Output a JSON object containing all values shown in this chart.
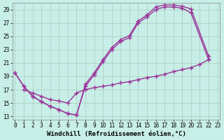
{
  "xlabel": "Windchill (Refroidissement éolien,°C)",
  "bg_color": "#c8eee8",
  "line_color": "#993399",
  "xlim": [
    -0.3,
    23.3
  ],
  "ylim": [
    12.5,
    30.0
  ],
  "xticks": [
    0,
    1,
    2,
    3,
    4,
    5,
    6,
    7,
    8,
    9,
    10,
    11,
    12,
    13,
    14,
    15,
    16,
    17,
    18,
    19,
    20,
    21,
    22,
    23
  ],
  "yticks": [
    13,
    15,
    17,
    19,
    21,
    23,
    25,
    27,
    29
  ],
  "line1_x": [
    0,
    1,
    2,
    3,
    4,
    5,
    6,
    7,
    8,
    9,
    10,
    11,
    12,
    13,
    14,
    15,
    16,
    17,
    18,
    19,
    20,
    22
  ],
  "line1_y": [
    19.5,
    17.5,
    16.0,
    15.2,
    14.5,
    14.0,
    13.4,
    13.2,
    17.8,
    19.5,
    21.5,
    23.3,
    24.5,
    25.1,
    27.3,
    28.2,
    29.4,
    29.7,
    29.7,
    29.5,
    29.1,
    22.0
  ],
  "line2_x": [
    0,
    1,
    2,
    3,
    4,
    5,
    6,
    7,
    8,
    9,
    10,
    11,
    12,
    13,
    14,
    15,
    16,
    17,
    18,
    19,
    20,
    22
  ],
  "line2_y": [
    19.5,
    17.5,
    16.0,
    15.2,
    14.5,
    14.0,
    13.4,
    13.2,
    17.5,
    19.2,
    21.2,
    23.0,
    24.2,
    24.8,
    27.0,
    27.9,
    29.0,
    29.4,
    29.4,
    29.2,
    28.5,
    21.5
  ],
  "line3_x": [
    1,
    2,
    3,
    4,
    5,
    6,
    7,
    8,
    9,
    10,
    11,
    12,
    13,
    14,
    15,
    16,
    17,
    18,
    19,
    20,
    21,
    22
  ],
  "line3_y": [
    17.0,
    16.5,
    16.0,
    15.5,
    15.3,
    15.0,
    16.5,
    17.0,
    17.3,
    17.5,
    17.7,
    18.0,
    18.2,
    18.5,
    18.8,
    19.0,
    19.3,
    19.7,
    20.0,
    20.3,
    20.8,
    21.5
  ],
  "tick_fontsize": 5.5,
  "label_fontsize": 6.5
}
